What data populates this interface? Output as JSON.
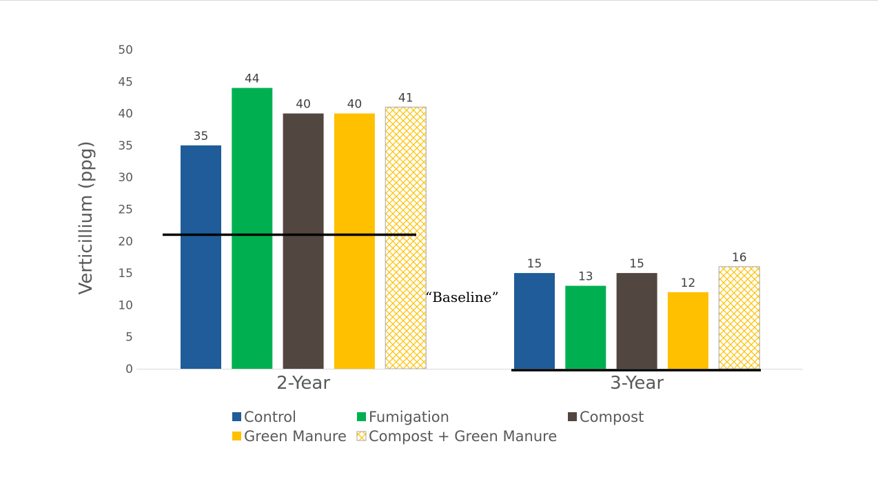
{
  "chart_data": {
    "type": "bar",
    "categories": [
      "2-Year",
      "3-Year"
    ],
    "series": [
      {
        "name": "Control",
        "values": [
          35,
          15
        ],
        "color": "#1F5C99",
        "pattern": "solid"
      },
      {
        "name": "Fumigation",
        "values": [
          44,
          13
        ],
        "color": "#00B050",
        "pattern": "solid"
      },
      {
        "name": "Compost",
        "values": [
          40,
          15
        ],
        "color": "#524640",
        "pattern": "solid"
      },
      {
        "name": "Green Manure",
        "values": [
          40,
          12
        ],
        "color": "#FFC000",
        "pattern": "solid"
      },
      {
        "name": "Compost + Green Manure",
        "values": [
          41,
          16
        ],
        "color": "#FFC000",
        "pattern": "crosshatch"
      }
    ],
    "ylabel": "Verticillium (ppg)",
    "xlabel": "",
    "ylim": [
      0,
      50
    ],
    "yticks": [
      "0",
      "5",
      "10",
      "15",
      "20",
      "25",
      "30",
      "35",
      "40",
      "45",
      "50"
    ],
    "grid": false,
    "legend_position": "bottom",
    "annotation": {
      "label": "“Baseline”",
      "line_value_2year": 21,
      "line_value_3year": 0
    }
  }
}
